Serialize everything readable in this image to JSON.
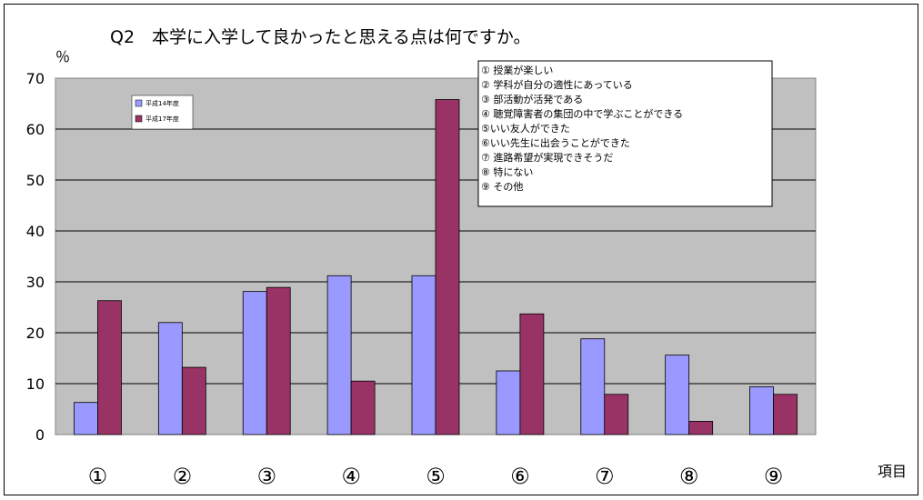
{
  "chart_data": {
    "type": "bar",
    "title": "Q2　本学に入学して良かったと思える点は何ですか。",
    "ylabel": "％",
    "xlabel": "項目",
    "categories": [
      "①",
      "②",
      "③",
      "④",
      "⑤",
      "⑥",
      "⑦",
      "⑧",
      "⑨"
    ],
    "series": [
      {
        "name": "平成14年度",
        "color": "#9999ff",
        "values": [
          6.3,
          22.0,
          28.1,
          31.2,
          31.2,
          12.5,
          18.8,
          15.6,
          9.4
        ]
      },
      {
        "name": "平成17年度",
        "color": "#993366",
        "values": [
          26.3,
          13.2,
          28.9,
          10.5,
          65.8,
          23.7,
          7.9,
          2.6,
          7.9
        ]
      }
    ],
    "ylim": [
      0,
      70
    ],
    "yticks": [
      0,
      10,
      20,
      30,
      40,
      50,
      60,
      70
    ],
    "grid": true,
    "plot_background": "#c0c0c0",
    "legend_position": "top-left",
    "annotation_box": [
      "① 授業が楽しい",
      "② 学科が自分の適性にあっている",
      "③ 部活動が活発である",
      "④ 聴覚障害者の集団の中で学ぶことができる",
      "⑤いい友人ができた",
      "⑥いい先生に出会うことができた",
      "⑦ 進路希望が実現できそうだ",
      "⑧ 特にない",
      "⑨ その他"
    ]
  }
}
